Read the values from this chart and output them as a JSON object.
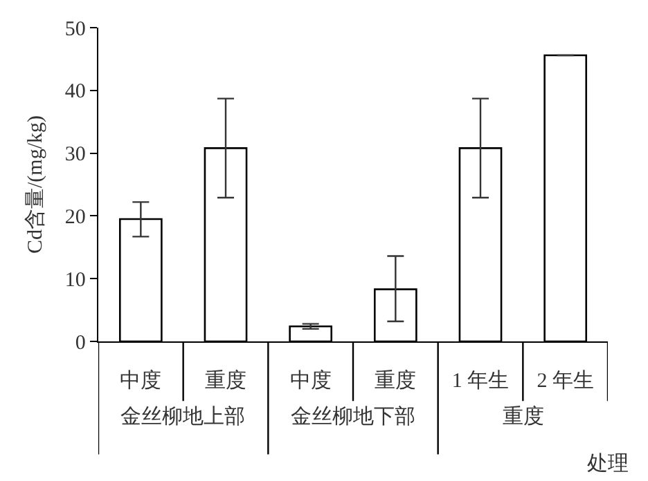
{
  "chart_data": {
    "type": "bar",
    "ylabel": "Cd含量/(mg/kg)",
    "xlabel": "处理",
    "categories": [
      "中度",
      "重度",
      "中度",
      "重度",
      "1 年生",
      "2 年生"
    ],
    "values": [
      19.5,
      30.8,
      2.4,
      8.3,
      30.8,
      45.6
    ],
    "errors": [
      [
        16.7,
        22.2
      ],
      [
        22.9,
        38.7
      ],
      [
        2.0,
        2.8
      ],
      [
        3.2,
        13.6
      ],
      [
        22.9,
        38.7
      ],
      null
    ],
    "color": "#ffffff",
    "ylim": [
      0,
      50
    ],
    "yticks": [
      0,
      10,
      20,
      30,
      40,
      50
    ],
    "annotations": [
      "金丝柳地上部",
      "金丝柳地下部",
      "重度"
    ]
  }
}
